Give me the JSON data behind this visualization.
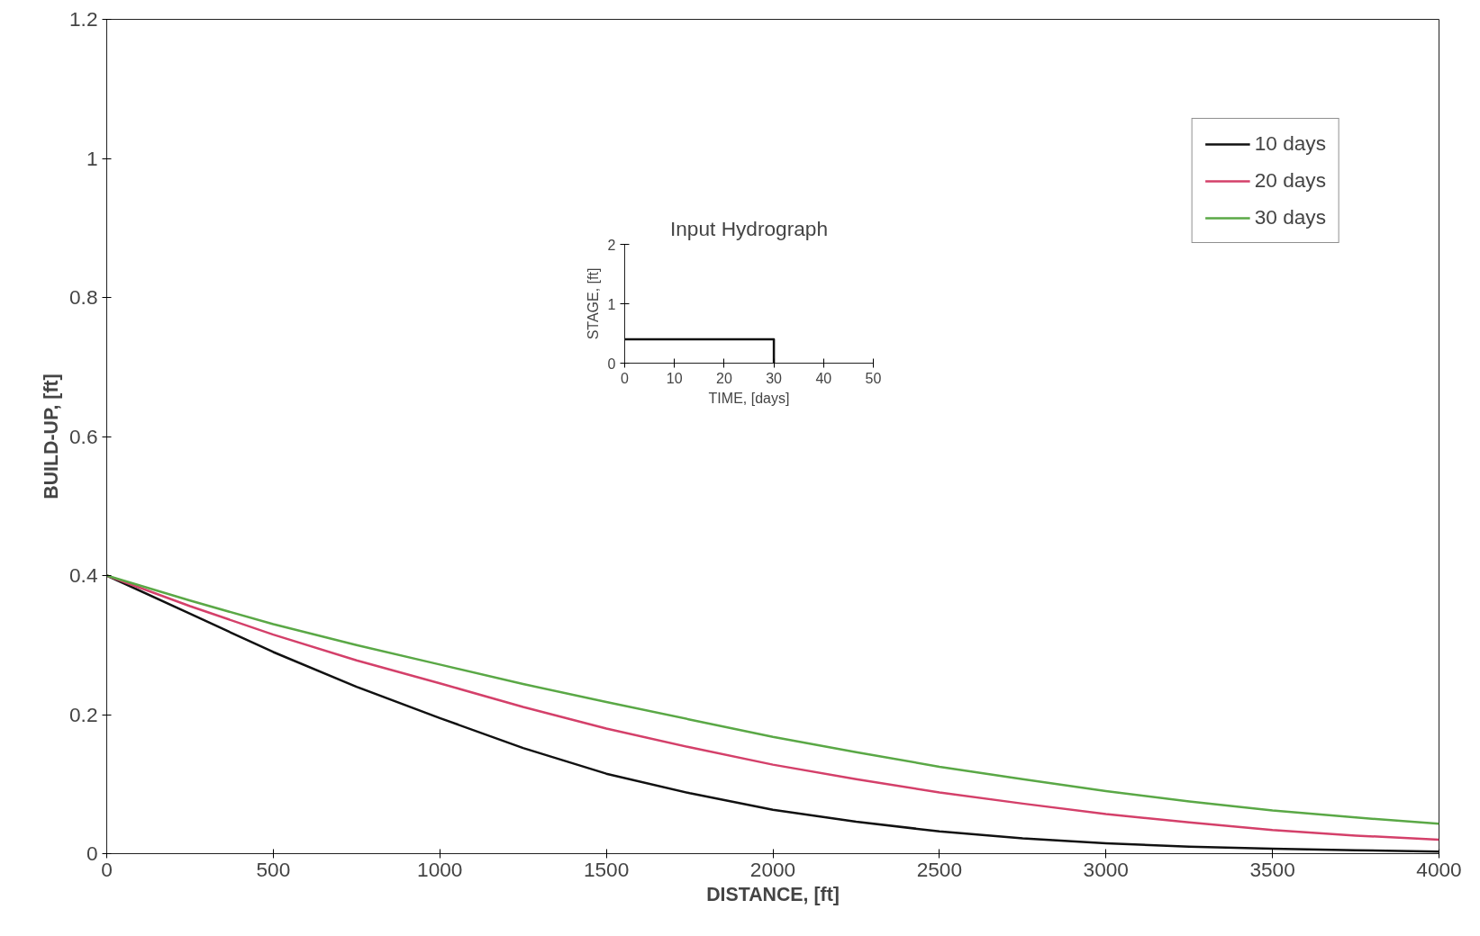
{
  "chart_data": [
    {
      "type": "line",
      "xlabel": "DISTANCE, [ft]",
      "ylabel": "BUILD-UP, [ft]",
      "xlim": [
        0,
        4000
      ],
      "ylim": [
        0,
        1.2
      ],
      "xticks": [
        0,
        500,
        1000,
        1500,
        2000,
        2500,
        3000,
        3500,
        4000
      ],
      "yticks": [
        0,
        0.2,
        0.4,
        0.6,
        0.8,
        1,
        1.2
      ],
      "legend": "top right",
      "x": [
        0,
        250,
        500,
        750,
        1000,
        1250,
        1500,
        1750,
        2000,
        2250,
        2500,
        2750,
        3000,
        3250,
        3500,
        3750,
        4000
      ],
      "series": [
        {
          "name": "10 days",
          "color": "#111111",
          "values": [
            0.4,
            0.345,
            0.29,
            0.24,
            0.195,
            0.152,
            0.115,
            0.087,
            0.063,
            0.046,
            0.032,
            0.022,
            0.015,
            0.01,
            0.007,
            0.005,
            0.003
          ]
        },
        {
          "name": "20 days",
          "color": "#d4406a",
          "values": [
            0.4,
            0.356,
            0.315,
            0.278,
            0.245,
            0.211,
            0.18,
            0.153,
            0.128,
            0.107,
            0.088,
            0.072,
            0.057,
            0.045,
            0.034,
            0.026,
            0.02
          ]
        },
        {
          "name": "30 days",
          "color": "#5aa846",
          "values": [
            0.4,
            0.364,
            0.33,
            0.3,
            0.272,
            0.244,
            0.218,
            0.193,
            0.168,
            0.146,
            0.125,
            0.107,
            0.09,
            0.075,
            0.062,
            0.052,
            0.043
          ]
        }
      ]
    },
    {
      "type": "line",
      "title": "Input Hydrograph",
      "xlabel": "TIME, [days]",
      "ylabel": "STAGE, [ft]",
      "xlim": [
        0,
        50
      ],
      "ylim": [
        0,
        2
      ],
      "xticks": [
        0,
        10,
        20,
        30,
        40,
        50
      ],
      "yticks": [
        0,
        1,
        2
      ],
      "x": [
        0,
        30,
        30
      ],
      "series": [
        {
          "color": "#111111",
          "values": [
            0.4,
            0.4,
            0
          ]
        }
      ]
    }
  ]
}
